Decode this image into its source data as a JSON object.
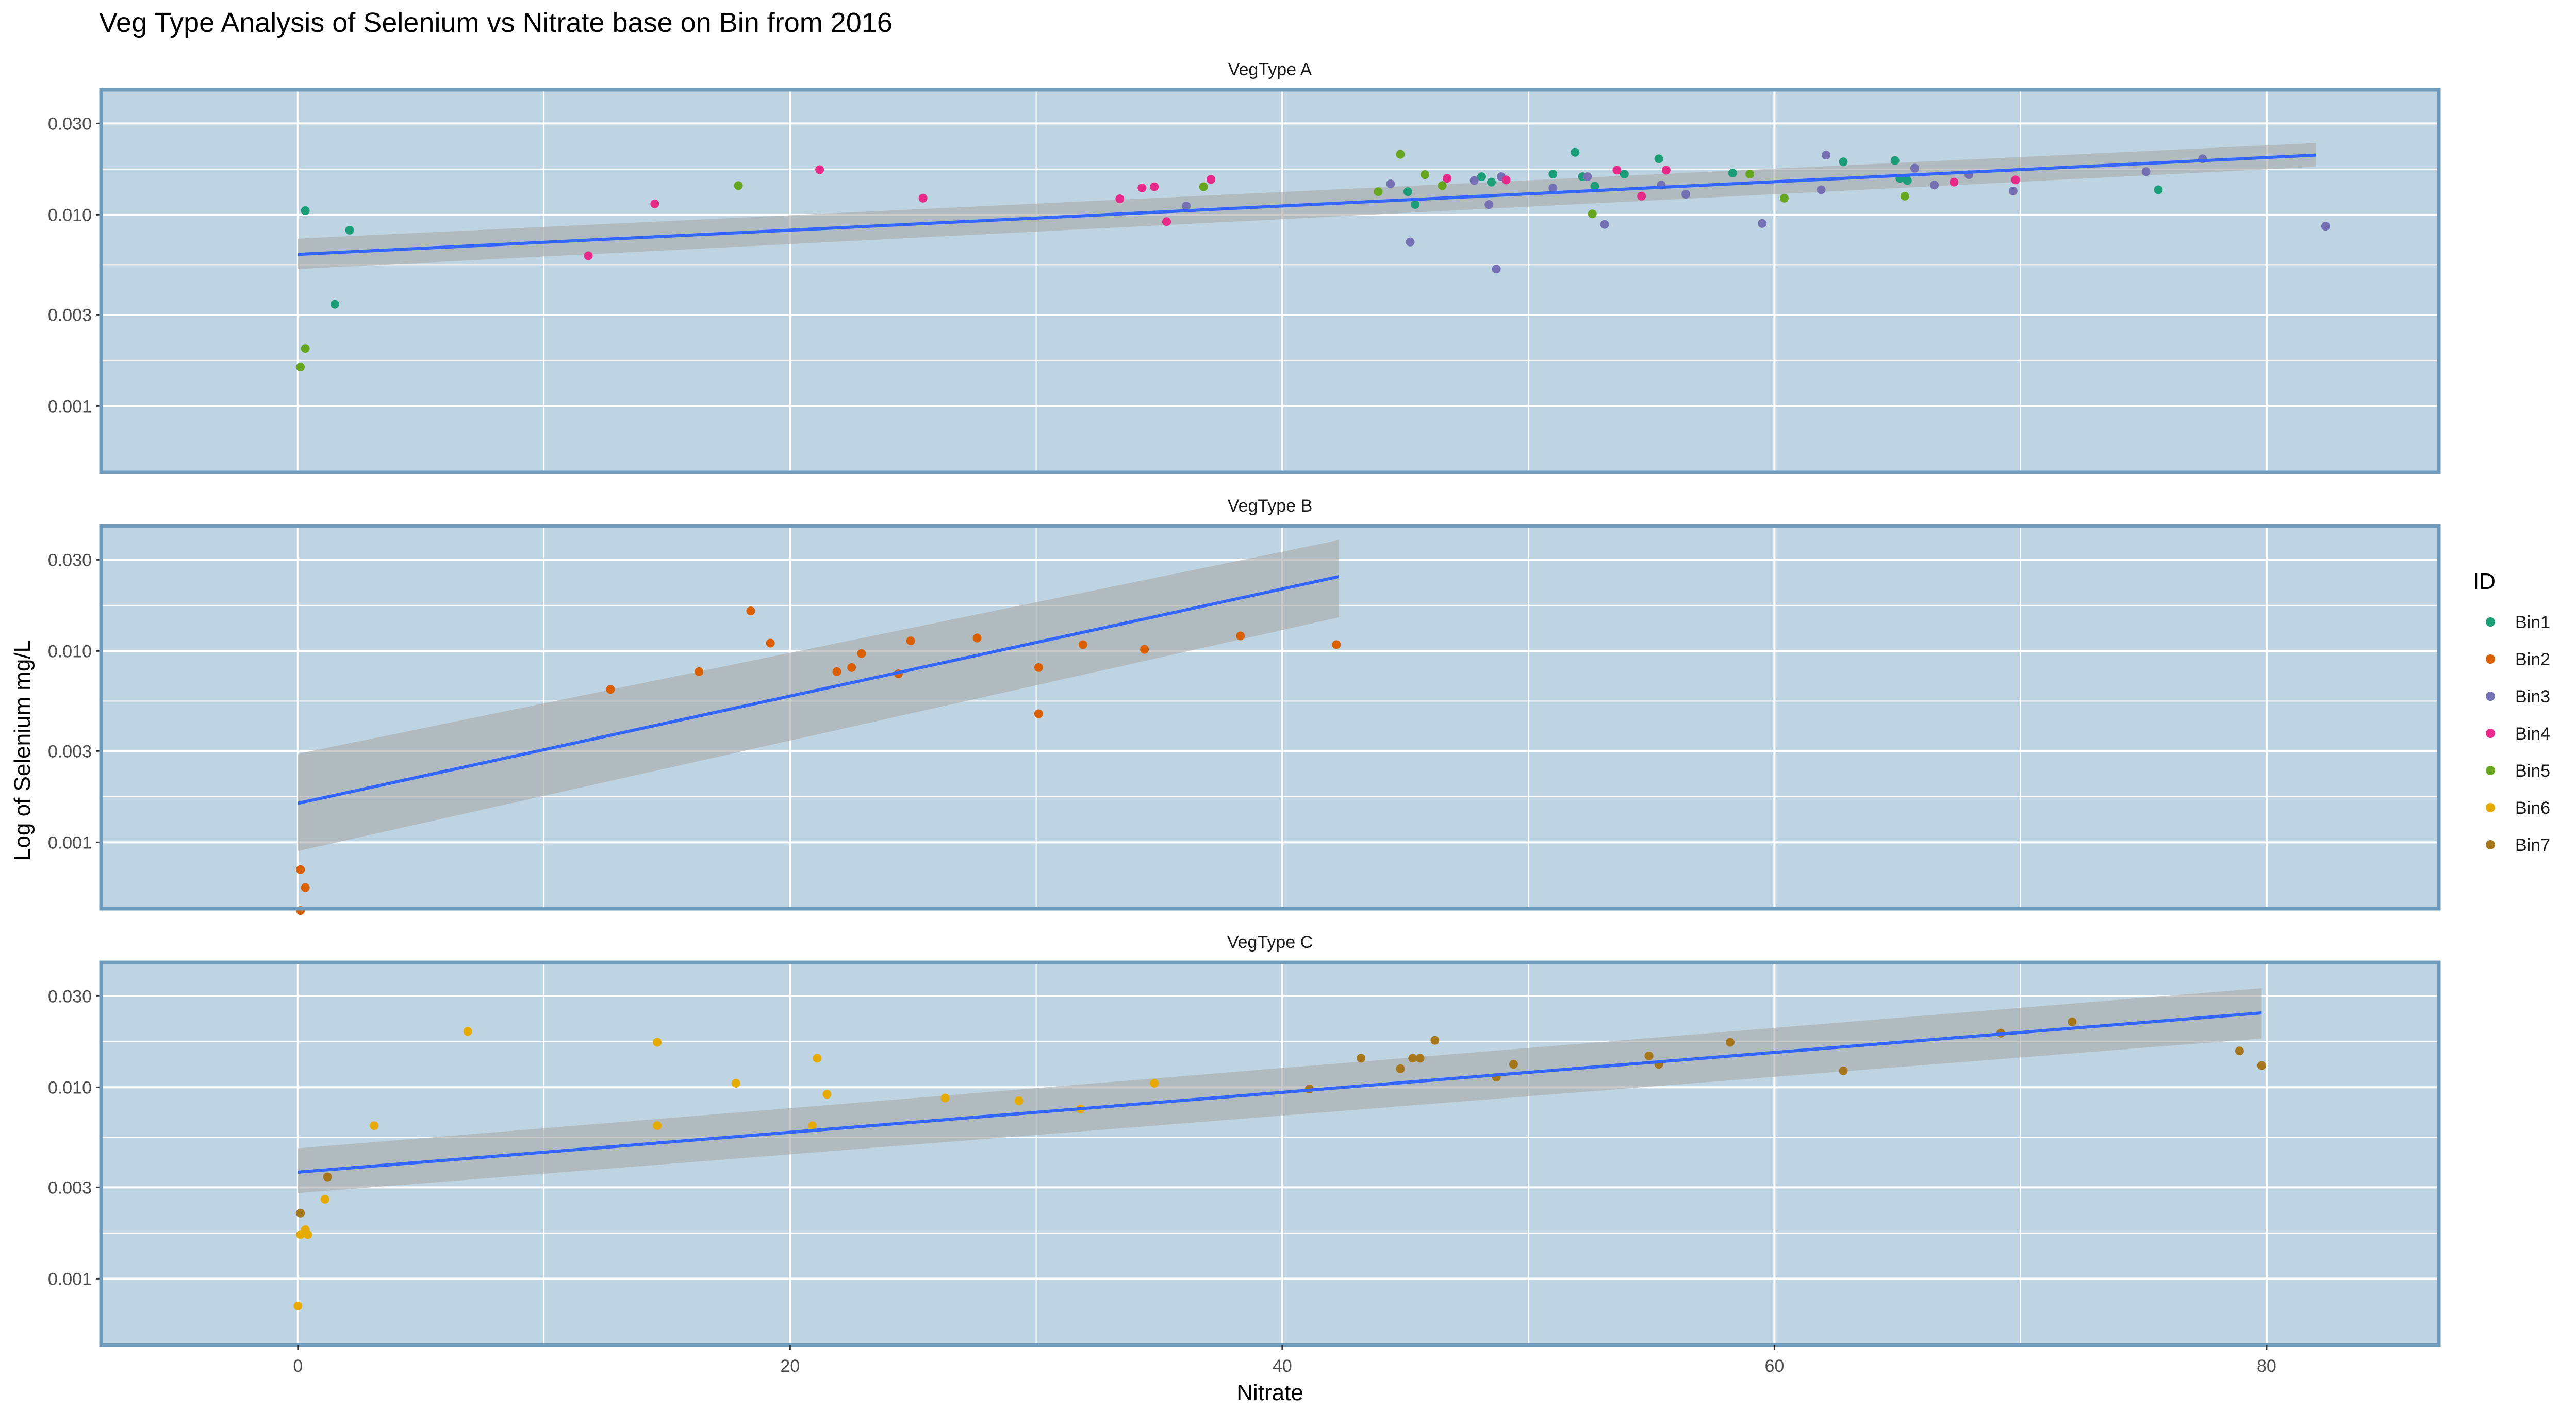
{
  "chart_data": {
    "type": "scatter",
    "title": "Veg Type Analysis of Selenium vs Nitrate base on Bin from 2016",
    "xlabel": "Nitrate",
    "ylabel": "Log of Selenium mg/L",
    "x_ticks": [
      0,
      20,
      40,
      60,
      80
    ],
    "xlim": [
      -8,
      87
    ],
    "y_scale": "log10",
    "y_ticks": [
      0.001,
      0.003,
      0.01,
      0.03
    ],
    "y_tick_labels": [
      "0.001",
      "0.003",
      "0.010",
      "0.030"
    ],
    "ylim": [
      0.00045,
      0.045
    ],
    "grid": true,
    "legend": {
      "title": "ID",
      "placement": "right",
      "entries": [
        {
          "id": "Bin1",
          "label": "Bin1",
          "color": "#1b9e77"
        },
        {
          "id": "Bin2",
          "label": "Bin2",
          "color": "#d95f02"
        },
        {
          "id": "Bin3",
          "label": "Bin3",
          "color": "#7570b3"
        },
        {
          "id": "Bin4",
          "label": "Bin4",
          "color": "#e7298a"
        },
        {
          "id": "Bin5",
          "label": "Bin5",
          "color": "#66a61e"
        },
        {
          "id": "Bin6",
          "label": "Bin6",
          "color": "#e6ab02"
        },
        {
          "id": "Bin7",
          "label": "Bin7",
          "color": "#a6761d"
        }
      ]
    },
    "colors": {
      "panel_bg": "#bfd4e2",
      "panel_border": "#6f9cbd",
      "grid": "#ffffff",
      "trend": "#3366ff",
      "band": "#a8a8a8"
    },
    "panels": [
      {
        "label": "VegType A",
        "trend": {
          "x0": 0,
          "y0": 0.0062,
          "x1": 82,
          "y1": 0.0205,
          "ci_start": [
            0.0052,
            0.0075
          ],
          "ci_end": [
            0.0178,
            0.0237
          ]
        },
        "points": [
          {
            "bin": "Bin1",
            "x": 0.3,
            "y": 0.0105
          },
          {
            "bin": "Bin1",
            "x": 2.1,
            "y": 0.0083
          },
          {
            "bin": "Bin1",
            "x": 1.5,
            "y": 0.0034
          },
          {
            "bin": "Bin5",
            "x": 0.1,
            "y": 0.0016
          },
          {
            "bin": "Bin5",
            "x": 0.3,
            "y": 0.002
          },
          {
            "bin": "Bin4",
            "x": 11.8,
            "y": 0.0061
          },
          {
            "bin": "Bin4",
            "x": 14.5,
            "y": 0.0114
          },
          {
            "bin": "Bin5",
            "x": 17.9,
            "y": 0.0142
          },
          {
            "bin": "Bin4",
            "x": 21.2,
            "y": 0.0172
          },
          {
            "bin": "Bin4",
            "x": 25.4,
            "y": 0.0122
          },
          {
            "bin": "Bin4",
            "x": 33.4,
            "y": 0.0121
          },
          {
            "bin": "Bin4",
            "x": 34.3,
            "y": 0.0138
          },
          {
            "bin": "Bin4",
            "x": 34.8,
            "y": 0.014
          },
          {
            "bin": "Bin4",
            "x": 35.3,
            "y": 0.0092
          },
          {
            "bin": "Bin3",
            "x": 36.1,
            "y": 0.0111
          },
          {
            "bin": "Bin5",
            "x": 36.8,
            "y": 0.014
          },
          {
            "bin": "Bin4",
            "x": 37.1,
            "y": 0.0153
          },
          {
            "bin": "Bin5",
            "x": 43.9,
            "y": 0.0132
          },
          {
            "bin": "Bin3",
            "x": 44.4,
            "y": 0.0145
          },
          {
            "bin": "Bin5",
            "x": 44.8,
            "y": 0.0207
          },
          {
            "bin": "Bin1",
            "x": 45.1,
            "y": 0.0132
          },
          {
            "bin": "Bin3",
            "x": 45.2,
            "y": 0.0072
          },
          {
            "bin": "Bin1",
            "x": 45.4,
            "y": 0.0113
          },
          {
            "bin": "Bin5",
            "x": 45.8,
            "y": 0.0162
          },
          {
            "bin": "Bin5",
            "x": 46.5,
            "y": 0.0142
          },
          {
            "bin": "Bin4",
            "x": 46.7,
            "y": 0.0155
          },
          {
            "bin": "Bin3",
            "x": 47.8,
            "y": 0.0151
          },
          {
            "bin": "Bin1",
            "x": 48.1,
            "y": 0.0158
          },
          {
            "bin": "Bin3",
            "x": 48.4,
            "y": 0.0113
          },
          {
            "bin": "Bin1",
            "x": 48.5,
            "y": 0.0148
          },
          {
            "bin": "Bin3",
            "x": 48.7,
            "y": 0.0052
          },
          {
            "bin": "Bin3",
            "x": 48.9,
            "y": 0.0158
          },
          {
            "bin": "Bin4",
            "x": 49.1,
            "y": 0.0152
          },
          {
            "bin": "Bin1",
            "x": 51.0,
            "y": 0.0163
          },
          {
            "bin": "Bin3",
            "x": 51.0,
            "y": 0.0138
          },
          {
            "bin": "Bin1",
            "x": 51.9,
            "y": 0.0212
          },
          {
            "bin": "Bin1",
            "x": 52.2,
            "y": 0.0158
          },
          {
            "bin": "Bin3",
            "x": 52.4,
            "y": 0.0158
          },
          {
            "bin": "Bin5",
            "x": 52.6,
            "y": 0.0101
          },
          {
            "bin": "Bin1",
            "x": 52.7,
            "y": 0.0141
          },
          {
            "bin": "Bin3",
            "x": 53.1,
            "y": 0.0089
          },
          {
            "bin": "Bin4",
            "x": 53.6,
            "y": 0.0171
          },
          {
            "bin": "Bin1",
            "x": 53.9,
            "y": 0.0163
          },
          {
            "bin": "Bin4",
            "x": 54.6,
            "y": 0.0125
          },
          {
            "bin": "Bin1",
            "x": 55.3,
            "y": 0.0196
          },
          {
            "bin": "Bin3",
            "x": 55.4,
            "y": 0.0143
          },
          {
            "bin": "Bin4",
            "x": 55.6,
            "y": 0.0171
          },
          {
            "bin": "Bin3",
            "x": 56.4,
            "y": 0.0128
          },
          {
            "bin": "Bin1",
            "x": 58.3,
            "y": 0.0165
          },
          {
            "bin": "Bin5",
            "x": 59.0,
            "y": 0.0163
          },
          {
            "bin": "Bin3",
            "x": 59.5,
            "y": 0.009
          },
          {
            "bin": "Bin5",
            "x": 60.4,
            "y": 0.0122
          },
          {
            "bin": "Bin3",
            "x": 61.9,
            "y": 0.0135
          },
          {
            "bin": "Bin3",
            "x": 62.1,
            "y": 0.0205
          },
          {
            "bin": "Bin1",
            "x": 62.8,
            "y": 0.0189
          },
          {
            "bin": "Bin1",
            "x": 64.9,
            "y": 0.0192
          },
          {
            "bin": "Bin1",
            "x": 65.1,
            "y": 0.0155
          },
          {
            "bin": "Bin5",
            "x": 65.3,
            "y": 0.0125
          },
          {
            "bin": "Bin1",
            "x": 65.4,
            "y": 0.0151
          },
          {
            "bin": "Bin3",
            "x": 65.7,
            "y": 0.0175
          },
          {
            "bin": "Bin3",
            "x": 66.5,
            "y": 0.0143
          },
          {
            "bin": "Bin4",
            "x": 67.3,
            "y": 0.0148
          },
          {
            "bin": "Bin3",
            "x": 67.9,
            "y": 0.0162
          },
          {
            "bin": "Bin3",
            "x": 69.7,
            "y": 0.0133
          },
          {
            "bin": "Bin4",
            "x": 69.8,
            "y": 0.0152
          },
          {
            "bin": "Bin3",
            "x": 75.1,
            "y": 0.0168
          },
          {
            "bin": "Bin1",
            "x": 75.6,
            "y": 0.0135
          },
          {
            "bin": "Bin3",
            "x": 77.4,
            "y": 0.0196
          },
          {
            "bin": "Bin3",
            "x": 82.4,
            "y": 0.0087
          }
        ]
      },
      {
        "label": "VegType B",
        "trend": {
          "x0": 0,
          "y0": 0.0016,
          "x1": 42.3,
          "y1": 0.0245,
          "ci_start": [
            0.0009,
            0.0029
          ],
          "ci_end": [
            0.015,
            0.038
          ]
        },
        "points": [
          {
            "bin": "Bin2",
            "x": 0.1,
            "y": 0.00072
          },
          {
            "bin": "Bin2",
            "x": 0.3,
            "y": 0.00058
          },
          {
            "bin": "Bin2",
            "x": 0.1,
            "y": 0.00044
          },
          {
            "bin": "Bin2",
            "x": 12.7,
            "y": 0.0063
          },
          {
            "bin": "Bin2",
            "x": 16.3,
            "y": 0.0078
          },
          {
            "bin": "Bin2",
            "x": 18.4,
            "y": 0.0162
          },
          {
            "bin": "Bin2",
            "x": 19.2,
            "y": 0.011
          },
          {
            "bin": "Bin2",
            "x": 21.9,
            "y": 0.0078
          },
          {
            "bin": "Bin2",
            "x": 22.5,
            "y": 0.0082
          },
          {
            "bin": "Bin2",
            "x": 22.9,
            "y": 0.0097
          },
          {
            "bin": "Bin2",
            "x": 24.4,
            "y": 0.0076
          },
          {
            "bin": "Bin2",
            "x": 24.9,
            "y": 0.0113
          },
          {
            "bin": "Bin2",
            "x": 27.6,
            "y": 0.0117
          },
          {
            "bin": "Bin2",
            "x": 30.1,
            "y": 0.0082
          },
          {
            "bin": "Bin2",
            "x": 30.1,
            "y": 0.0047
          },
          {
            "bin": "Bin2",
            "x": 31.9,
            "y": 0.0108
          },
          {
            "bin": "Bin2",
            "x": 34.4,
            "y": 0.0102
          },
          {
            "bin": "Bin2",
            "x": 38.3,
            "y": 0.012
          },
          {
            "bin": "Bin2",
            "x": 42.2,
            "y": 0.0108
          }
        ]
      },
      {
        "label": "VegType C",
        "trend": {
          "x0": 0,
          "y0": 0.0036,
          "x1": 79.8,
          "y1": 0.0245,
          "ci_start": [
            0.0028,
            0.0048
          ],
          "ci_end": [
            0.018,
            0.033
          ]
        },
        "points": [
          {
            "bin": "Bin6",
            "x": 0.0,
            "y": 0.00072
          },
          {
            "bin": "Bin6",
            "x": 0.1,
            "y": 0.0017
          },
          {
            "bin": "Bin7",
            "x": 0.1,
            "y": 0.0022
          },
          {
            "bin": "Bin6",
            "x": 0.3,
            "y": 0.0018
          },
          {
            "bin": "Bin6",
            "x": 0.4,
            "y": 0.0017
          },
          {
            "bin": "Bin6",
            "x": 1.1,
            "y": 0.0026
          },
          {
            "bin": "Bin7",
            "x": 1.2,
            "y": 0.0034
          },
          {
            "bin": "Bin6",
            "x": 3.1,
            "y": 0.0063
          },
          {
            "bin": "Bin6",
            "x": 6.9,
            "y": 0.0196
          },
          {
            "bin": "Bin6",
            "x": 14.6,
            "y": 0.0172
          },
          {
            "bin": "Bin6",
            "x": 14.6,
            "y": 0.0063
          },
          {
            "bin": "Bin6",
            "x": 17.8,
            "y": 0.0105
          },
          {
            "bin": "Bin6",
            "x": 20.9,
            "y": 0.0063
          },
          {
            "bin": "Bin6",
            "x": 21.1,
            "y": 0.0142
          },
          {
            "bin": "Bin6",
            "x": 21.5,
            "y": 0.0092
          },
          {
            "bin": "Bin6",
            "x": 26.3,
            "y": 0.0088
          },
          {
            "bin": "Bin6",
            "x": 29.3,
            "y": 0.0085
          },
          {
            "bin": "Bin6",
            "x": 31.8,
            "y": 0.0077
          },
          {
            "bin": "Bin6",
            "x": 34.8,
            "y": 0.0105
          },
          {
            "bin": "Bin7",
            "x": 41.1,
            "y": 0.0098
          },
          {
            "bin": "Bin7",
            "x": 43.2,
            "y": 0.0142
          },
          {
            "bin": "Bin7",
            "x": 44.8,
            "y": 0.0125
          },
          {
            "bin": "Bin7",
            "x": 45.3,
            "y": 0.0142
          },
          {
            "bin": "Bin7",
            "x": 45.6,
            "y": 0.0142
          },
          {
            "bin": "Bin7",
            "x": 46.2,
            "y": 0.0176
          },
          {
            "bin": "Bin7",
            "x": 48.7,
            "y": 0.0113
          },
          {
            "bin": "Bin7",
            "x": 49.4,
            "y": 0.0132
          },
          {
            "bin": "Bin7",
            "x": 54.9,
            "y": 0.0146
          },
          {
            "bin": "Bin7",
            "x": 55.3,
            "y": 0.0132
          },
          {
            "bin": "Bin7",
            "x": 58.2,
            "y": 0.0172
          },
          {
            "bin": "Bin7",
            "x": 62.8,
            "y": 0.0122
          },
          {
            "bin": "Bin7",
            "x": 69.2,
            "y": 0.0192
          },
          {
            "bin": "Bin7",
            "x": 72.1,
            "y": 0.022
          },
          {
            "bin": "Bin7",
            "x": 78.9,
            "y": 0.0155
          },
          {
            "bin": "Bin7",
            "x": 79.8,
            "y": 0.013
          }
        ]
      }
    ]
  }
}
